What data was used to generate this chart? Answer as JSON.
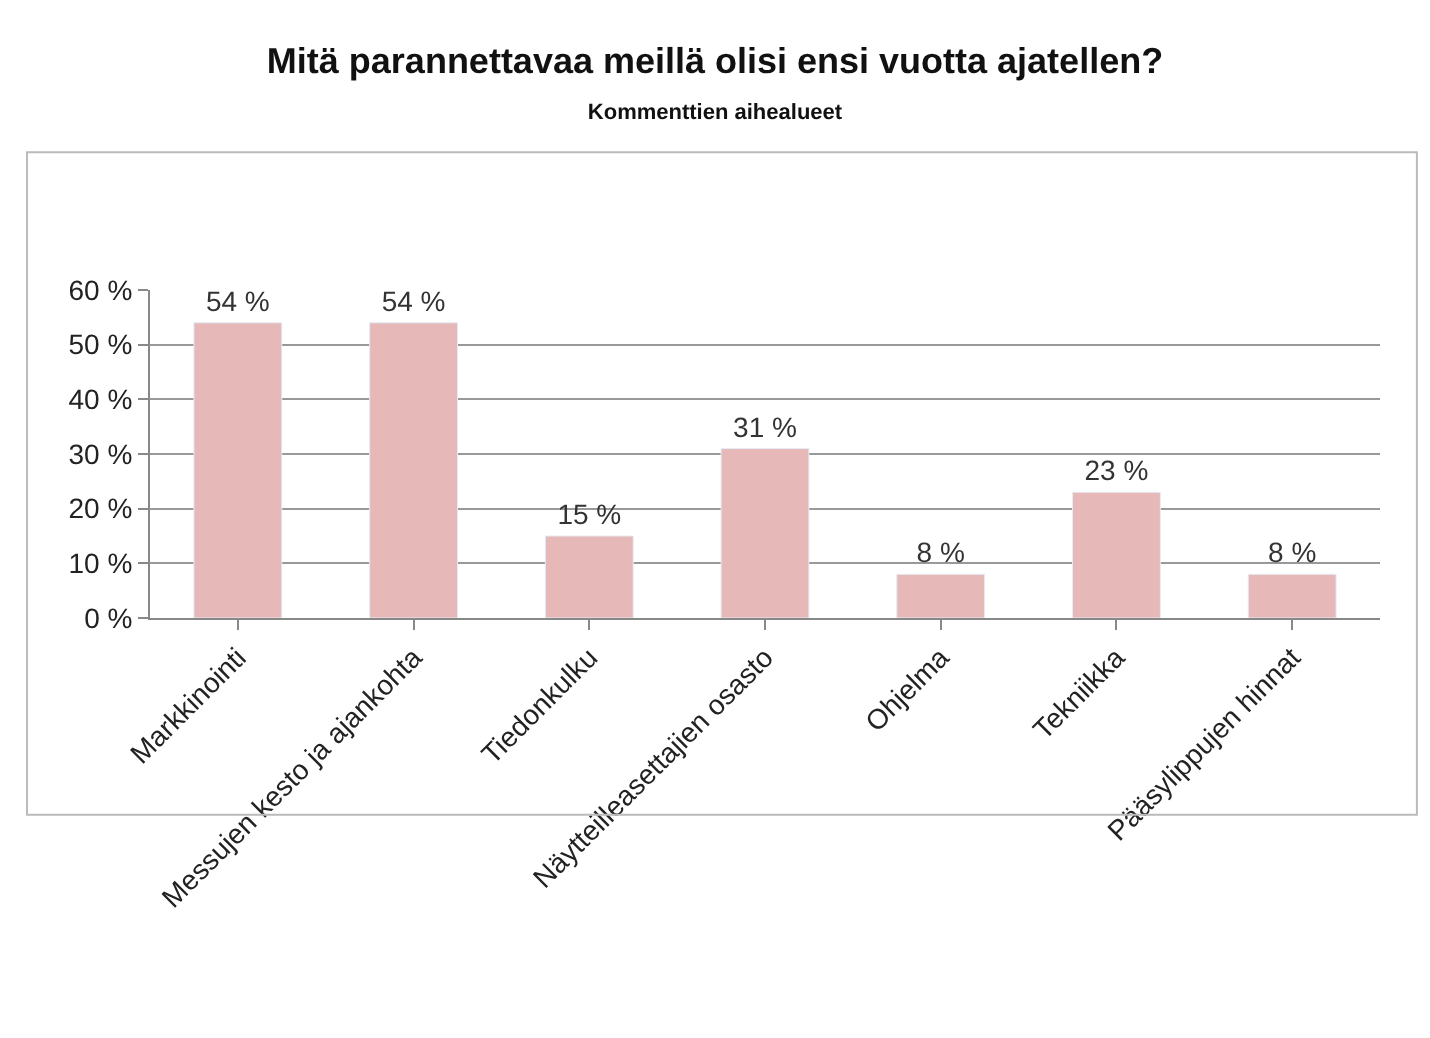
{
  "chart_data": {
    "type": "bar",
    "title": "Mitä parannettavaa meillä olisi ensi vuotta ajatellen?",
    "subtitle": "Kommenttien aihealueet",
    "categories": [
      "Markkinointi",
      "Messujen kesto ja ajankohta",
      "Tiedonkulku",
      "Näytteilleasettajien osasto",
      "Ohjelma",
      "Tekniikka",
      "Pääsylippujen hinnat"
    ],
    "values": [
      54,
      54,
      15,
      31,
      8,
      23,
      8
    ],
    "value_labels": [
      "54 %",
      "54 %",
      "15 %",
      "31 %",
      "8 %",
      "23 %",
      "8 %"
    ],
    "color": "#e6b9b8",
    "ylim": [
      0,
      60
    ],
    "yticks": [
      {
        "value": 0,
        "label": "0 %"
      },
      {
        "value": 10,
        "label": "10 %"
      },
      {
        "value": 20,
        "label": "20 %"
      },
      {
        "value": 30,
        "label": "30 %"
      },
      {
        "value": 40,
        "label": "40 %"
      },
      {
        "value": 50,
        "label": "50 %"
      },
      {
        "value": 60,
        "label": "60 %"
      }
    ],
    "grid": "y",
    "legend": false
  }
}
